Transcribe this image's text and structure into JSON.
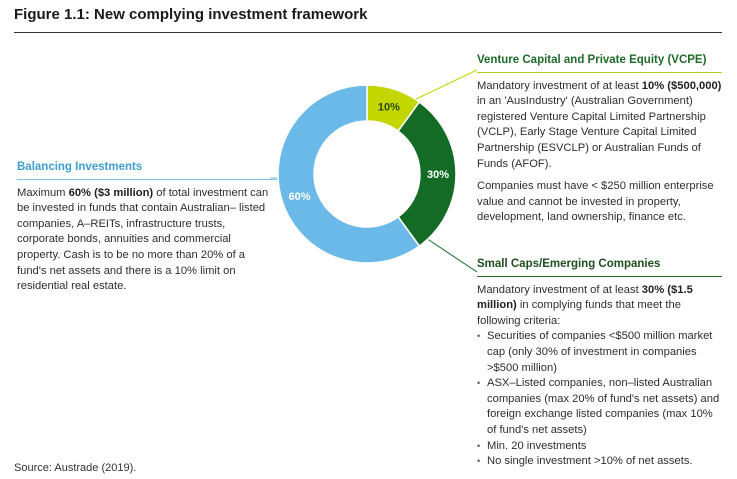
{
  "figure": {
    "title": "Figure 1.1: New complying investment framework",
    "source": "Source: Austrade (2019)."
  },
  "colors": {
    "balancing": "#6ab9e8",
    "vcpe": "#c4d600",
    "small_caps": "#136b26"
  },
  "chart_data": {
    "type": "pie",
    "donut": true,
    "title": "Figure 1.1: New complying investment framework",
    "categories": [
      "Venture Capital and Private Equity (VCPE)",
      "Small Caps/Emerging Companies",
      "Balancing Investments"
    ],
    "values": [
      10,
      30,
      60
    ],
    "labels": [
      "10%",
      "30%",
      "60%"
    ],
    "start_angle_deg": 0,
    "direction": "clockwise"
  },
  "balancing": {
    "heading": "Balancing Investments",
    "text_pre": "Maximum ",
    "text_bold": "60% ($3 million)",
    "text_post": " of total investment can be invested in funds that contain Australian– listed companies, A–REITs, infrastructure trusts, corporate bonds, annuities and commercial property. Cash is to be no more than 20% of a fund's net assets and there is a 10% limit on residential real estate."
  },
  "vcpe": {
    "heading": "Venture Capital and Private Equity (VCPE)",
    "text_pre": "Mandatory investment of at least ",
    "text_bold": "10% ($500,000)",
    "text_post": " in an 'AusIndustry' (Australian Government) registered Venture Capital Limited Partnership (VCLP), Early Stage Venture Capital Limited Partnership (ESVCLP) or Australian Funds of Funds (AFOF).",
    "text2": "Companies must have < $250 million enterprise value and cannot be invested in property, development, land ownership, finance etc."
  },
  "small_caps": {
    "heading": "Small Caps/Emerging Companies",
    "text_pre": "Mandatory investment of at least ",
    "text_bold": "30% ($1.5 million)",
    "text_post": " in complying funds that meet the following criteria:",
    "bullets": [
      "Securities of companies <$500 million market cap (only 30% of investment in companies >$500 million)",
      "ASX–Listed companies, non–listed Australian companies (max 20% of fund's net assets) and foreign exchange listed companies (max 10% of fund's net assets)",
      "Min. 20 investments",
      "No single investment >10% of net assets."
    ]
  }
}
